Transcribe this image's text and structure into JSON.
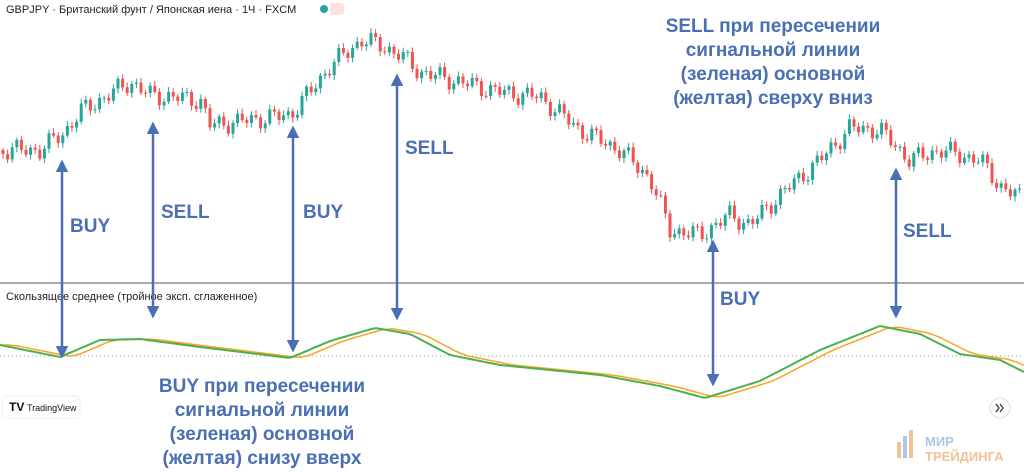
{
  "header": {
    "symbol": "GBPJPY · Британский фунт / Японская иена · 1Ч · FXCM"
  },
  "indicator": {
    "label": "Скользящее среднее (тройное эксп. сглаженное)"
  },
  "annotations": [
    {
      "label": "BUY"
    },
    {
      "label": "SELL"
    },
    {
      "label": "BUY"
    },
    {
      "label": "SELL"
    },
    {
      "label": "BUY"
    },
    {
      "label": "SELL"
    }
  ],
  "notes": {
    "sell": [
      "SELL при пересечении",
      "сигнальной линии",
      "(зеленая) основной",
      "(желтая) сверху вниз"
    ],
    "buy": [
      "BUY при пересечении",
      "сигнальной линии",
      "(зеленая) основной",
      "(желтая) снизу вверх"
    ]
  },
  "branding": {
    "tradingview": "TradingView",
    "watermark": [
      "МИР",
      "ТРЕЙДИНГА"
    ]
  }
}
